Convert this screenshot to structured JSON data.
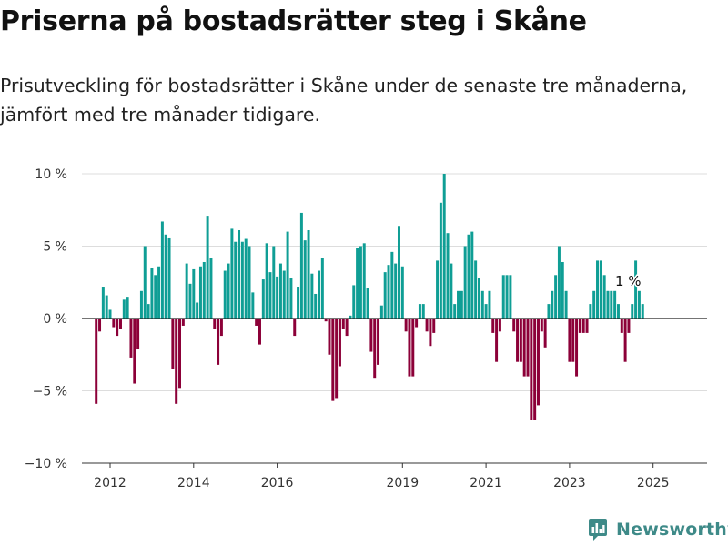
{
  "header": {
    "title": "Priserna på bostadsrätter steg i Skåne",
    "subtitle": "Prisutveckling för bostadsrätter i Skåne under de senaste tre månaderna, jämfört med tre månader tidigare."
  },
  "brand": {
    "name": "Newsworthy",
    "icon": "newsworthy-logo-icon",
    "color": "#3e8a88"
  },
  "colors": {
    "positive": "#0f9e95",
    "negative": "#8c0038",
    "zero_line": "#222222",
    "grid": "#dddddd"
  },
  "chart_data": {
    "type": "bar",
    "title": "Priserna på bostadsrätter steg i Skåne",
    "xlabel": "",
    "ylabel": "",
    "ylim": [
      -10,
      10
    ],
    "y_ticks": [
      10,
      5,
      0,
      -5,
      -10
    ],
    "y_tick_labels": [
      "10 %",
      "5 %",
      "0 %",
      "−5 %",
      "−10 %"
    ],
    "x_ticks": [
      2012,
      2014,
      2016,
      2019,
      2021,
      2023,
      2025
    ],
    "x_tick_labels": [
      "2012",
      "2014",
      "2016",
      "2019",
      "2021",
      "2023",
      "2025"
    ],
    "grid": true,
    "series": [
      {
        "values": [
          -5.9,
          -0.9,
          2.2,
          1.6,
          0.6,
          -0.6,
          -1.2,
          -0.7,
          1.3,
          1.5,
          -2.7,
          -4.5,
          -2.1,
          1.9,
          5.0,
          1.0,
          3.5,
          3.0,
          3.6,
          6.7,
          5.8,
          5.6,
          -3.5,
          -5.9,
          -4.8,
          -0.5,
          3.8,
          2.4,
          3.4,
          1.1,
          3.6,
          3.9,
          7.1,
          4.2,
          -0.7,
          -3.2,
          -1.2,
          3.3,
          3.8,
          6.2,
          5.3,
          6.1,
          5.3,
          5.5,
          5.0,
          1.8,
          -0.5,
          -1.8,
          2.7,
          5.2,
          3.2,
          5.0,
          2.9,
          3.8,
          3.3,
          6.0,
          2.8,
          -1.2,
          2.2,
          7.3,
          5.4,
          6.1,
          3.1,
          1.7,
          3.3,
          4.2,
          -0.2,
          -2.5,
          -5.7,
          -5.5,
          -3.3,
          -0.7,
          -1.2,
          0.2,
          2.3,
          4.9,
          5.0,
          5.2,
          2.1,
          -2.3,
          -4.1,
          -3.2,
          0.9,
          3.2,
          3.7,
          4.6,
          3.8,
          6.4,
          3.6,
          -0.9,
          -4.0,
          -4.0,
          -0.6,
          1.0,
          1.0,
          -0.9,
          -1.9,
          -1.0,
          4.0,
          8.0,
          10.0,
          5.9,
          3.8,
          1.0,
          1.9,
          1.9,
          5.0,
          5.8,
          6.0,
          4.0,
          2.8,
          1.9,
          1.0,
          1.9,
          -1.0,
          -3.0,
          -0.9,
          3.0,
          3.0,
          3.0,
          -0.9,
          -3.0,
          -3.0,
          -4.0,
          -4.0,
          -7.0,
          -7.0,
          -6.0,
          -0.9,
          -2.0,
          1.0,
          1.9,
          3.0,
          5.0,
          3.9,
          1.9,
          -3.0,
          -3.0,
          -4.0,
          -1.0,
          -1.0,
          -1.0,
          1.0,
          1.9,
          4.0,
          4.0,
          3.0,
          1.9,
          1.9,
          1.9,
          1.0,
          -1.0,
          -3.0,
          -1.0,
          1.0,
          4.0,
          1.9,
          1.0
        ]
      }
    ],
    "annotations": [
      {
        "text": "1 %",
        "x": "2025",
        "y": 1.9
      }
    ]
  }
}
